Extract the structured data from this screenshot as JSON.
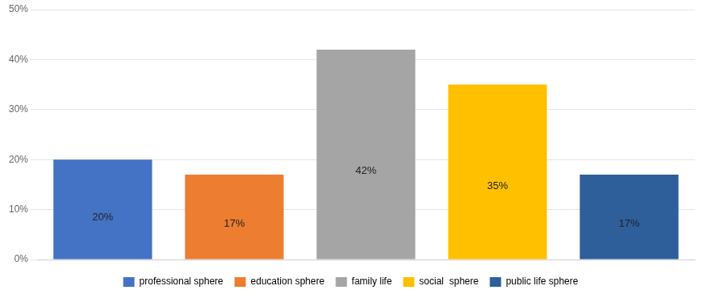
{
  "chart_data": {
    "type": "bar",
    "categories": [
      "professional sphere",
      "education sphere",
      "family life",
      "social  sphere",
      "public life sphere"
    ],
    "values": [
      20,
      17,
      42,
      35,
      17
    ],
    "value_labels": [
      "20%",
      "17%",
      "42%",
      "35%",
      "17%"
    ],
    "data_labels": true,
    "colors": [
      "#4472C4",
      "#ED7D31",
      "#A5A5A5",
      "#FFC000",
      "#2E5F9B"
    ],
    "ylim": [
      0,
      50
    ],
    "yticks": [
      {
        "value": 0,
        "label": "0%"
      },
      {
        "value": 10,
        "label": "10%"
      },
      {
        "value": 20,
        "label": "20%"
      },
      {
        "value": 30,
        "label": "30%"
      },
      {
        "value": 40,
        "label": "40%"
      },
      {
        "value": 50,
        "label": "50%"
      }
    ],
    "grid": true,
    "legend": "bottom",
    "tick_labels": "y"
  }
}
